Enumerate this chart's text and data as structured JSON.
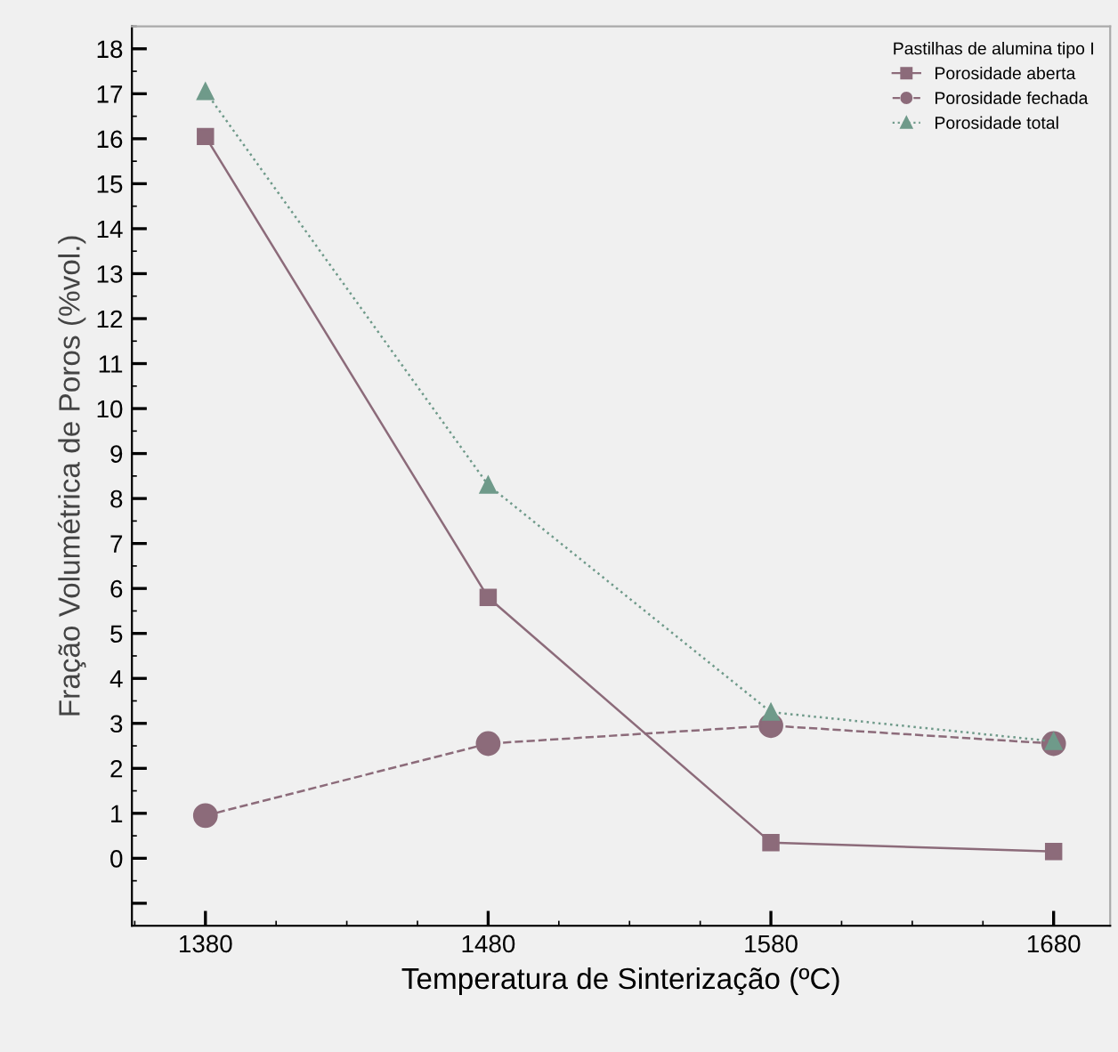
{
  "chart_data": {
    "type": "line",
    "xlabel": "Temperatura de Sinterização (ºC)",
    "ylabel": "Fração Volumétrica de Poros (%vol.)",
    "legend_title": "Pastilhas de alumina tipo I",
    "legend": "top right",
    "grid": false,
    "x": [
      1380,
      1480,
      1580,
      1680
    ],
    "xlim": [
      1354,
      1700
    ],
    "xticks": [
      1380,
      1480,
      1580,
      1680
    ],
    "ylim": [
      -1.5,
      18.5
    ],
    "yticks": [
      {
        "value": -1,
        "label": null
      },
      0,
      1,
      2,
      3,
      4,
      5,
      6,
      7,
      8,
      9,
      10,
      11,
      12,
      13,
      14,
      15,
      16,
      17,
      18
    ],
    "series": [
      {
        "name": "Porosidade aberta",
        "color": "#8c6b7a",
        "marker": "square",
        "line_style": "solid",
        "values": [
          16.05,
          5.8,
          0.35,
          0.15
        ]
      },
      {
        "name": "Porosidade fechada",
        "color": "#8c6b7a",
        "marker": "circle",
        "line_style": "dashed",
        "values": [
          0.95,
          2.55,
          2.95,
          2.55
        ]
      },
      {
        "name": "Porosidade total",
        "color": "#6f9a8a",
        "marker": "triangle",
        "line_style": "dotted",
        "values": [
          17.05,
          8.3,
          3.25,
          2.6
        ]
      }
    ]
  }
}
